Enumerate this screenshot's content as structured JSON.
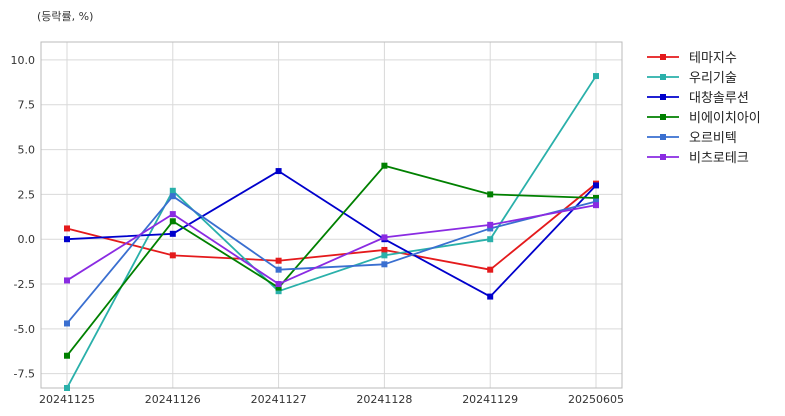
{
  "chart_data": {
    "type": "line",
    "unit_label": "(등락률, %)",
    "x": [
      "20241125",
      "20241126",
      "20241127",
      "20241128",
      "20241129",
      "20250605"
    ],
    "ylim": [
      -8.3,
      11.0
    ],
    "yticks": [
      10.0,
      7.5,
      5.0,
      2.5,
      0.0,
      -2.5,
      -5.0,
      -7.5
    ],
    "ytick_labels": [
      "10.0",
      "7.5",
      "5.0",
      "2.5",
      "0.0",
      "-2.5",
      "-5.0",
      "-7.5"
    ],
    "grid": true,
    "legend_position": "top-right, outside plot",
    "series": [
      {
        "name": "테마지수",
        "color": "#e41a1c",
        "values": [
          0.6,
          -0.9,
          -1.2,
          -0.6,
          -1.7,
          3.1
        ]
      },
      {
        "name": "우리기술",
        "color": "#2ab0aa",
        "values": [
          -8.3,
          2.7,
          -2.9,
          -0.9,
          0.0,
          9.1
        ]
      },
      {
        "name": "대창솔루션",
        "color": "#0000cc",
        "values": [
          0.0,
          0.3,
          3.8,
          0.0,
          -3.2,
          3.0
        ]
      },
      {
        "name": "비에이치아이",
        "color": "#008000",
        "values": [
          -6.5,
          1.0,
          -2.7,
          4.1,
          2.5,
          2.3
        ]
      },
      {
        "name": "오르비텍",
        "color": "#3a6fd0",
        "values": [
          -4.7,
          2.4,
          -1.7,
          -1.4,
          0.6,
          2.1
        ]
      },
      {
        "name": "비츠로테크",
        "color": "#8a2be2",
        "values": [
          -2.3,
          1.4,
          -2.5,
          0.1,
          0.8,
          1.9
        ]
      }
    ]
  }
}
